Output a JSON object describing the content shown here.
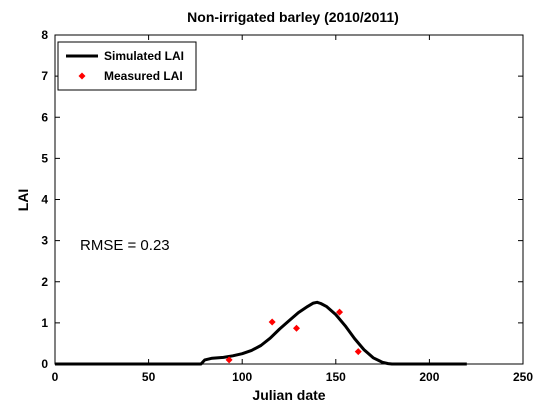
{
  "chart_data": {
    "type": "line",
    "title": "Non-irrigated barley (2010/2011)",
    "xlabel": "Julian date",
    "ylabel": "LAI",
    "xlim": [
      0,
      250
    ],
    "ylim": [
      0,
      8
    ],
    "xticks": [
      0,
      50,
      100,
      150,
      200,
      250
    ],
    "yticks": [
      0,
      1,
      2,
      3,
      4,
      5,
      6,
      7,
      8
    ],
    "grid": false,
    "legend_position": "top-left",
    "annotation": "RMSE = 0.23",
    "series": [
      {
        "name": "Simulated LAI",
        "style": "line",
        "color": "#000000",
        "x": [
          0,
          78,
          80,
          84,
          90,
          95,
          100,
          105,
          110,
          115,
          120,
          125,
          130,
          135,
          138,
          140,
          142,
          145,
          150,
          155,
          160,
          165,
          170,
          175,
          178,
          180,
          200,
          220
        ],
        "y": [
          0,
          0,
          0.1,
          0.14,
          0.16,
          0.2,
          0.25,
          0.33,
          0.45,
          0.63,
          0.85,
          1.05,
          1.25,
          1.4,
          1.48,
          1.5,
          1.47,
          1.4,
          1.2,
          0.93,
          0.62,
          0.35,
          0.15,
          0.04,
          0.01,
          0,
          0,
          0
        ]
      },
      {
        "name": "Measured LAI",
        "style": "marker",
        "color": "#ff0000",
        "x": [
          93,
          116,
          129,
          152,
          162
        ],
        "y": [
          0.1,
          1.02,
          0.87,
          1.26,
          0.3
        ]
      }
    ]
  }
}
